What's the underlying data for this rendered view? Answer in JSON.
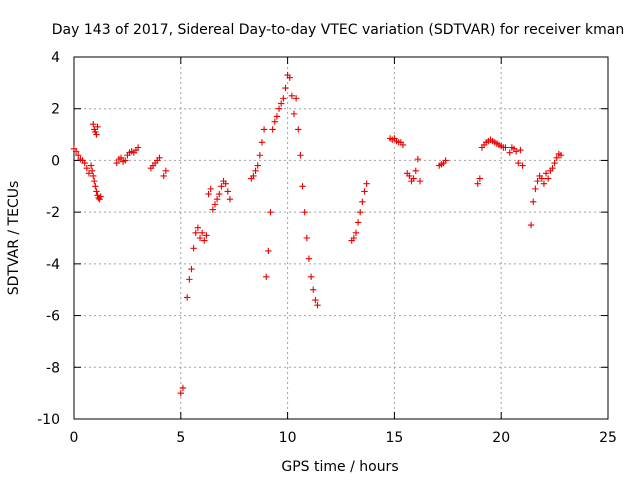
{
  "chart_data": {
    "type": "scatter",
    "title": "Day 143 of 2017, Sidereal Day-to-day VTEC variation (SDTVAR) for receiver kman",
    "xlabel": "GPS time / hours",
    "ylabel": "SDTVAR / TECUs",
    "xlim": [
      0,
      25
    ],
    "ylim": [
      -10,
      4
    ],
    "xticks": [
      "0",
      "5",
      "10",
      "15",
      "20",
      "25"
    ],
    "yticks": [
      "4",
      "2",
      "0",
      "-2",
      "-4",
      "-6",
      "-8",
      "-10"
    ],
    "grid": true,
    "marker": "+",
    "marker_color": "#ee0000",
    "series": [
      {
        "name": "kman",
        "x": [
          0.0,
          0.1,
          0.2,
          0.3,
          0.4,
          0.5,
          0.6,
          0.7,
          0.8,
          0.85,
          0.9,
          0.95,
          1.0,
          1.05,
          1.1,
          1.15,
          1.2,
          1.25,
          0.9,
          0.95,
          1.0,
          1.05,
          1.1,
          2.0,
          2.1,
          2.2,
          2.3,
          2.4,
          2.5,
          2.6,
          2.7,
          2.8,
          2.9,
          3.0,
          3.6,
          3.7,
          3.8,
          3.9,
          4.0,
          4.2,
          4.3,
          5.0,
          5.1,
          5.3,
          5.4,
          5.5,
          5.6,
          5.7,
          5.8,
          5.9,
          6.0,
          6.1,
          6.2,
          6.3,
          6.4,
          6.5,
          6.6,
          6.7,
          6.8,
          6.9,
          7.0,
          7.1,
          7.2,
          7.3,
          8.3,
          8.4,
          8.5,
          8.6,
          8.7,
          8.8,
          8.9,
          9.0,
          9.1,
          9.2,
          9.3,
          9.4,
          9.5,
          9.6,
          9.7,
          9.8,
          9.9,
          10.0,
          10.1,
          10.2,
          10.3,
          10.4,
          10.5,
          10.6,
          10.7,
          10.8,
          10.9,
          11.0,
          11.1,
          11.2,
          11.3,
          11.4,
          13.0,
          13.1,
          13.2,
          13.3,
          13.4,
          13.5,
          13.6,
          13.7,
          14.8,
          14.9,
          15.0,
          15.1,
          15.2,
          15.3,
          15.4,
          15.6,
          15.7,
          15.8,
          15.9,
          16.0,
          16.1,
          16.2,
          17.1,
          17.2,
          17.3,
          17.4,
          18.9,
          19.0,
          19.1,
          19.2,
          19.3,
          19.4,
          19.5,
          19.6,
          19.7,
          19.8,
          19.9,
          20.0,
          20.1,
          20.2,
          20.4,
          20.5,
          20.6,
          20.7,
          20.8,
          20.9,
          21.0,
          21.4,
          21.5,
          21.6,
          21.7,
          21.8,
          21.9,
          22.0,
          22.1,
          22.2,
          22.3,
          22.4,
          22.5,
          22.6,
          22.7,
          22.8
        ],
        "y": [
          0.45,
          0.35,
          0.2,
          0.05,
          0.0,
          -0.1,
          -0.3,
          -0.5,
          -0.2,
          -0.4,
          -0.6,
          -0.8,
          -1.0,
          -1.2,
          -1.35,
          -1.45,
          -1.5,
          -1.4,
          1.4,
          1.2,
          1.1,
          1.0,
          1.3,
          -0.1,
          0.05,
          0.1,
          -0.05,
          0.0,
          0.2,
          0.3,
          0.35,
          0.3,
          0.4,
          0.5,
          -0.3,
          -0.2,
          -0.1,
          0.0,
          0.1,
          -0.6,
          -0.4,
          -9.0,
          -8.8,
          -5.3,
          -4.6,
          -4.2,
          -3.4,
          -2.8,
          -2.6,
          -3.0,
          -2.8,
          -3.1,
          -2.9,
          -1.3,
          -1.1,
          -1.9,
          -1.7,
          -1.5,
          -1.3,
          -1.0,
          -0.8,
          -0.9,
          -1.2,
          -1.5,
          -0.7,
          -0.6,
          -0.4,
          -0.2,
          0.2,
          0.7,
          1.2,
          -4.5,
          -3.5,
          -2.0,
          1.2,
          1.5,
          1.7,
          2.0,
          2.2,
          2.4,
          2.8,
          3.3,
          3.2,
          2.5,
          1.8,
          2.4,
          1.2,
          0.2,
          -1.0,
          -2.0,
          -3.0,
          -3.8,
          -4.5,
          -5.0,
          -5.4,
          -5.6,
          -3.1,
          -3.0,
          -2.8,
          -2.4,
          -2.0,
          -1.6,
          -1.2,
          -0.9,
          0.85,
          0.8,
          0.85,
          0.75,
          0.7,
          0.7,
          0.6,
          -0.5,
          -0.6,
          -0.8,
          -0.7,
          -0.4,
          0.05,
          -0.8,
          -0.2,
          -0.15,
          -0.1,
          0.0,
          -0.9,
          -0.7,
          0.5,
          0.6,
          0.7,
          0.75,
          0.8,
          0.75,
          0.7,
          0.65,
          0.6,
          0.55,
          0.5,
          0.5,
          0.3,
          0.5,
          0.45,
          0.35,
          -0.1,
          0.4,
          -0.2,
          -2.5,
          -1.6,
          -1.1,
          -0.8,
          -0.6,
          -0.7,
          -0.9,
          -0.5,
          -0.7,
          -0.4,
          -0.3,
          -0.1,
          0.1,
          0.25,
          0.2
        ]
      }
    ]
  }
}
